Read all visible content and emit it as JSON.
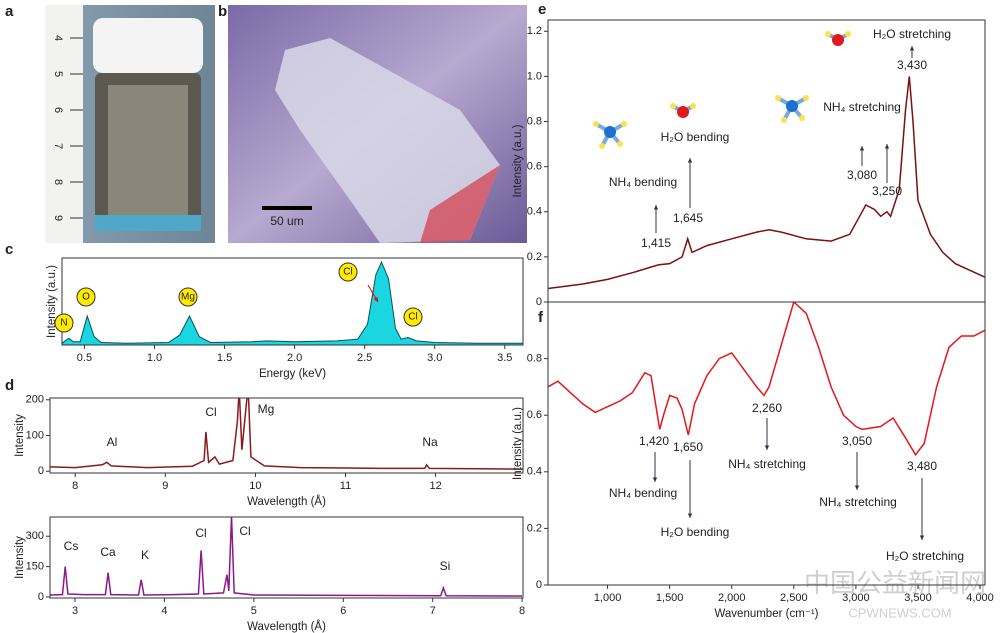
{
  "photos": [
    {
      "panel": "a",
      "ruler_labels": [
        "4",
        "5",
        "6",
        "7",
        "8",
        "9"
      ]
    },
    {
      "panel": "b",
      "scale_bar": "50 um"
    }
  ],
  "watermark": "中国公益新闻网",
  "watermark_url": "CPWNEWS.COM",
  "chart_data": [
    {
      "type": "area",
      "panel": "c",
      "xlabel": "Energy (keV)",
      "ylabel": "Intensity (a.u.)",
      "xlim": [
        0.34,
        3.63
      ],
      "ylim": [
        0,
        1.05
      ],
      "xticks": [
        0.5,
        {
          "value": 1,
          "label": "1.0"
        },
        1.5,
        {
          "value": 2,
          "label": "2.0"
        },
        2.5,
        {
          "value": 3,
          "label": "3.0"
        },
        3.5
      ],
      "x": [
        0.34,
        0.37,
        0.39,
        0.42,
        0.47,
        0.52,
        0.57,
        0.62,
        0.8,
        1.1,
        1.18,
        1.25,
        1.32,
        1.4,
        1.7,
        1.8,
        2.0,
        2.3,
        2.45,
        2.52,
        2.58,
        2.62,
        2.67,
        2.72,
        2.76,
        2.81,
        2.87,
        3.0,
        3.3,
        3.63
      ],
      "values": [
        0.02,
        0.06,
        0.08,
        0.04,
        0.04,
        0.35,
        0.1,
        0.03,
        0.02,
        0.03,
        0.12,
        0.35,
        0.1,
        0.03,
        0.04,
        0.05,
        0.04,
        0.05,
        0.07,
        0.25,
        0.85,
        1.0,
        0.8,
        0.2,
        0.07,
        0.09,
        0.05,
        0.03,
        0.02,
        0.02
      ],
      "color": "#19d6e0",
      "annotations": [
        "N",
        "O",
        "Mg",
        "Cl",
        "Cl"
      ]
    },
    {
      "type": "line",
      "panel": "d",
      "xlabel": "Wavelength (Å)",
      "ylabel": "Intensity",
      "xlim": [
        7.72,
        12.97
      ],
      "ylim": [
        -5,
        205
      ],
      "xticks": [
        8,
        9,
        10,
        11,
        12
      ],
      "yticks": [
        0,
        100,
        200
      ],
      "x": [
        7.72,
        8.0,
        8.3,
        8.35,
        8.4,
        8.8,
        9.3,
        9.43,
        9.45,
        9.48,
        9.55,
        9.6,
        9.75,
        9.8,
        9.82,
        9.85,
        9.9,
        9.92,
        9.95,
        10.1,
        10.5,
        11.0,
        11.5,
        11.88,
        11.9,
        11.93,
        12.5,
        12.97
      ],
      "values": [
        12,
        10,
        18,
        25,
        15,
        10,
        14,
        30,
        110,
        25,
        40,
        20,
        30,
        140,
        230,
        60,
        190,
        230,
        40,
        15,
        10,
        9,
        8,
        8,
        18,
        8,
        7,
        6
      ],
      "color": "#8b1a1a",
      "annotations": [
        "Al",
        "Cl",
        "Mg",
        "Na"
      ]
    },
    {
      "type": "line",
      "xlabel": "Wavelength (Å)",
      "ylabel": "Intensity",
      "xlim": [
        2.72,
        8.01
      ],
      "ylim": [
        -5,
        395
      ],
      "xticks": [
        3,
        4,
        5,
        6,
        7,
        8
      ],
      "yticks": [
        0,
        150,
        300
      ],
      "x": [
        2.72,
        2.86,
        2.89,
        2.92,
        3.1,
        3.34,
        3.37,
        3.4,
        3.71,
        3.74,
        3.77,
        4.1,
        4.38,
        4.41,
        4.44,
        4.66,
        4.7,
        4.72,
        4.75,
        4.78,
        5.0,
        6.0,
        7.09,
        7.12,
        7.15,
        8.0
      ],
      "values": [
        10,
        12,
        150,
        15,
        12,
        12,
        120,
        12,
        10,
        85,
        10,
        12,
        15,
        230,
        15,
        20,
        110,
        30,
        400,
        20,
        10,
        8,
        6,
        45,
        6,
        5
      ],
      "color": "#8a1a8a",
      "annotations": [
        "Cs",
        "Ca",
        "K",
        "Cl",
        "Cl",
        "Si"
      ]
    },
    {
      "type": "line",
      "panel": "e",
      "ylabel": "Intensity (a.u.)",
      "xlim": [
        520,
        4040
      ],
      "ylim": [
        0,
        1.25
      ],
      "yticks": [
        0,
        0.2,
        0.4,
        0.6,
        0.8,
        {
          "value": 1,
          "label": "1.0"
        },
        1.2
      ],
      "x": [
        520,
        800,
        1000,
        1200,
        1380,
        1415,
        1500,
        1600,
        1645,
        1680,
        1800,
        2000,
        2200,
        2300,
        2400,
        2600,
        2800,
        2950,
        3050,
        3080,
        3150,
        3200,
        3250,
        3280,
        3350,
        3400,
        3430,
        3460,
        3500,
        3600,
        3700,
        3800,
        4000,
        4040
      ],
      "values": [
        0.06,
        0.08,
        0.1,
        0.13,
        0.16,
        0.165,
        0.17,
        0.2,
        0.28,
        0.22,
        0.25,
        0.28,
        0.31,
        0.32,
        0.31,
        0.28,
        0.27,
        0.3,
        0.4,
        0.43,
        0.41,
        0.38,
        0.4,
        0.38,
        0.5,
        0.85,
        1.0,
        0.8,
        0.45,
        0.3,
        0.22,
        0.17,
        0.12,
        0.11
      ],
      "color": "#7a1010",
      "annotations": [
        "H₂O stretching",
        "3,430",
        "NH₄ stretching",
        "3,080",
        "3,250",
        "H₂O bending",
        "1,645",
        "NH₄ bending",
        "1,415"
      ]
    },
    {
      "type": "line",
      "panel": "f",
      "xlabel": "Wavenumber (cm⁻¹)",
      "ylabel": "Intensity (a.u.)",
      "xlim": [
        520,
        4040
      ],
      "ylim": [
        0,
        1.0
      ],
      "xticks": [
        {
          "value": 1000,
          "label": "1,000"
        },
        {
          "value": 1500,
          "label": "1,500"
        },
        {
          "value": 2000,
          "label": "2,000"
        },
        {
          "value": 2500,
          "label": "2,500"
        },
        {
          "value": 3000,
          "label": "3,000"
        },
        {
          "value": 3500,
          "label": "3,500"
        },
        {
          "value": 4000,
          "label": "4,000"
        }
      ],
      "yticks": [
        0,
        0.2,
        0.4,
        0.6,
        0.8
      ],
      "x": [
        520,
        600,
        700,
        800,
        900,
        1000,
        1100,
        1200,
        1300,
        1350,
        1420,
        1450,
        1500,
        1560,
        1600,
        1650,
        1700,
        1800,
        1900,
        2000,
        2100,
        2200,
        2260,
        2300,
        2400,
        2500,
        2600,
        2700,
        2800,
        2900,
        3000,
        3050,
        3200,
        3300,
        3400,
        3480,
        3550,
        3650,
        3750,
        3850,
        3950,
        4040
      ],
      "values": [
        0.7,
        0.72,
        0.68,
        0.64,
        0.61,
        0.63,
        0.65,
        0.68,
        0.75,
        0.74,
        0.55,
        0.6,
        0.67,
        0.66,
        0.62,
        0.53,
        0.64,
        0.74,
        0.8,
        0.82,
        0.76,
        0.7,
        0.67,
        0.7,
        0.85,
        1.0,
        0.96,
        0.84,
        0.7,
        0.6,
        0.56,
        0.55,
        0.56,
        0.59,
        0.52,
        0.46,
        0.5,
        0.7,
        0.84,
        0.88,
        0.88,
        0.9
      ],
      "color": "#e8141c",
      "annotations": [
        "1,420",
        "1,650",
        "NH₄ bending",
        "H₂O bending",
        "2,260",
        "NH₄ stretching",
        "3,050",
        "NH₄ stretching",
        "3,480",
        "H₂O stretching"
      ]
    }
  ]
}
